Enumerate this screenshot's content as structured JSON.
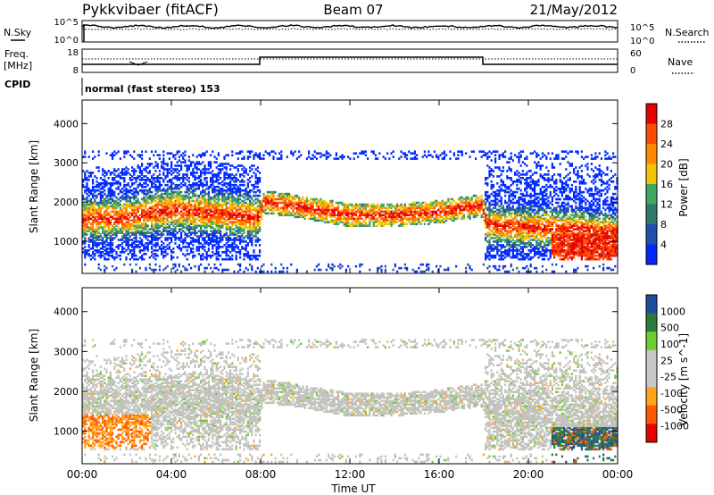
{
  "header": {
    "station": "Pykkvibaer (fitACF)",
    "beam": "Beam 07",
    "date": "21/May/2012"
  },
  "panel_labels": {
    "nsky": "N.Sky",
    "nsearch": "N.Search",
    "freq_line1": "Freq.",
    "freq_line2": "[MHz]",
    "nave": "Nave",
    "cpid": "CPID",
    "mode": "normal (fast stereo) 153"
  },
  "noise_axis": {
    "left_ticks": [
      "10^5",
      "10^0"
    ],
    "right_ticks": [
      "10^5",
      "10^0"
    ]
  },
  "freq_axis": {
    "left_ticks": [
      "18",
      "8"
    ],
    "right_ticks": [
      "60",
      "0"
    ]
  },
  "colors": {
    "power_scale": [
      "#0028ff",
      "#234eae",
      "#2f7a6a",
      "#3ea860",
      "#f2c400",
      "#ff8a00",
      "#ff4c00",
      "#e60000"
    ],
    "velocity_scale": [
      "#e80000",
      "#ff5a00",
      "#ffa31a",
      "#c7c7c7",
      "#c7c7c7",
      "#6dcc2e",
      "#2c7a3e",
      "#1e4d9e"
    ],
    "grey_scatter": "#c2c2bc"
  },
  "chart_data": [
    {
      "type": "heatmap",
      "quantity": "Power",
      "xlabel": "",
      "ylabel": "Slant Range [km]",
      "x_ticks": [
        "00:00",
        "04:00",
        "08:00",
        "12:00",
        "16:00",
        "20:00",
        "00:00"
      ],
      "x_hours": [
        0,
        4,
        8,
        12,
        16,
        20,
        24
      ],
      "y_ticks": [
        1000,
        2000,
        3000,
        4000
      ],
      "ylim": [
        180,
        4600
      ],
      "xlim": [
        0,
        24
      ],
      "colorbar": {
        "label": "Power [dB]",
        "ticks": [
          "28",
          "24",
          "20",
          "16",
          "12",
          "8",
          "4"
        ],
        "range": [
          0,
          30
        ]
      },
      "band_center_km": {
        "hours": [
          0,
          2,
          4,
          6,
          7.9,
          8.1,
          10,
          12,
          14,
          16,
          17.9,
          18.1,
          20,
          22,
          24
        ],
        "km": [
          1550,
          1600,
          1800,
          1700,
          1600,
          2000,
          1850,
          1650,
          1650,
          1750,
          1900,
          1400,
          1350,
          1300,
          1200
        ]
      }
    },
    {
      "type": "heatmap",
      "quantity": "Velocity",
      "xlabel": "Time UT",
      "ylabel": "Slant Range [km]",
      "x_ticks": [
        "00:00",
        "04:00",
        "08:00",
        "12:00",
        "16:00",
        "20:00",
        "00:00"
      ],
      "x_hours": [
        0,
        4,
        8,
        12,
        16,
        20,
        24
      ],
      "y_ticks": [
        1000,
        2000,
        3000,
        4000
      ],
      "ylim": [
        180,
        4600
      ],
      "xlim": [
        0,
        24
      ],
      "colorbar": {
        "label": "Velocity [m s^-1]",
        "ticks": [
          "1000",
          "500",
          "100",
          "25",
          "-25",
          "-100",
          "-500",
          "-1000"
        ]
      }
    }
  ]
}
